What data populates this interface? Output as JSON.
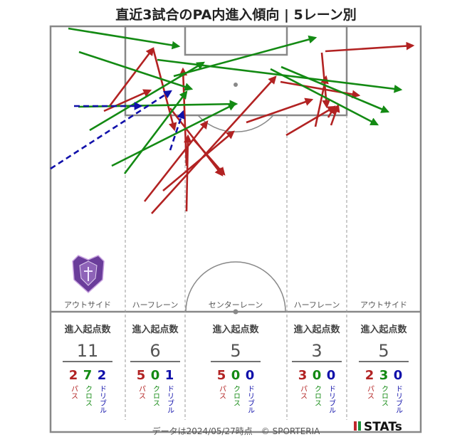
{
  "title": "直近3試合のPA内進入傾向 | 5レーン別",
  "footer": "データは2024/05/27時点　© SPORTERIA",
  "brand": "STATs",
  "colors": {
    "pass": "#b22222",
    "cross": "#138a13",
    "dribble": "#1010aa",
    "pitch_line": "#888888",
    "lane_line": "#999999"
  },
  "lanes": [
    {
      "label": "アウトサイド",
      "header": "進入起点数",
      "total": "11",
      "pass": "2",
      "cross": "7",
      "dribble": "2"
    },
    {
      "label": "ハーフレーン",
      "header": "進入起点数",
      "total": "6",
      "pass": "5",
      "cross": "0",
      "dribble": "1"
    },
    {
      "label": "センターレーン",
      "header": "進入起点数",
      "total": "5",
      "pass": "5",
      "cross": "0",
      "dribble": "0"
    },
    {
      "label": "ハーフレーン",
      "header": "進入起点数",
      "total": "3",
      "pass": "3",
      "cross": "0",
      "dribble": "0"
    },
    {
      "label": "アウトサイド",
      "header": "進入起点数",
      "total": "5",
      "pass": "2",
      "cross": "3",
      "dribble": "0"
    }
  ],
  "type_labels": {
    "pass": "パス",
    "cross": "クロス",
    "dribble": "ドリブル"
  },
  "logo": "sanfrecce-crest-icon",
  "chart_data": {
    "type": "arrow-map",
    "series": [
      {
        "name": "パス",
        "color": "#b22222"
      },
      {
        "name": "クロス",
        "color": "#138a13"
      },
      {
        "name": "ドリブル",
        "color": "#1010aa"
      }
    ]
  }
}
